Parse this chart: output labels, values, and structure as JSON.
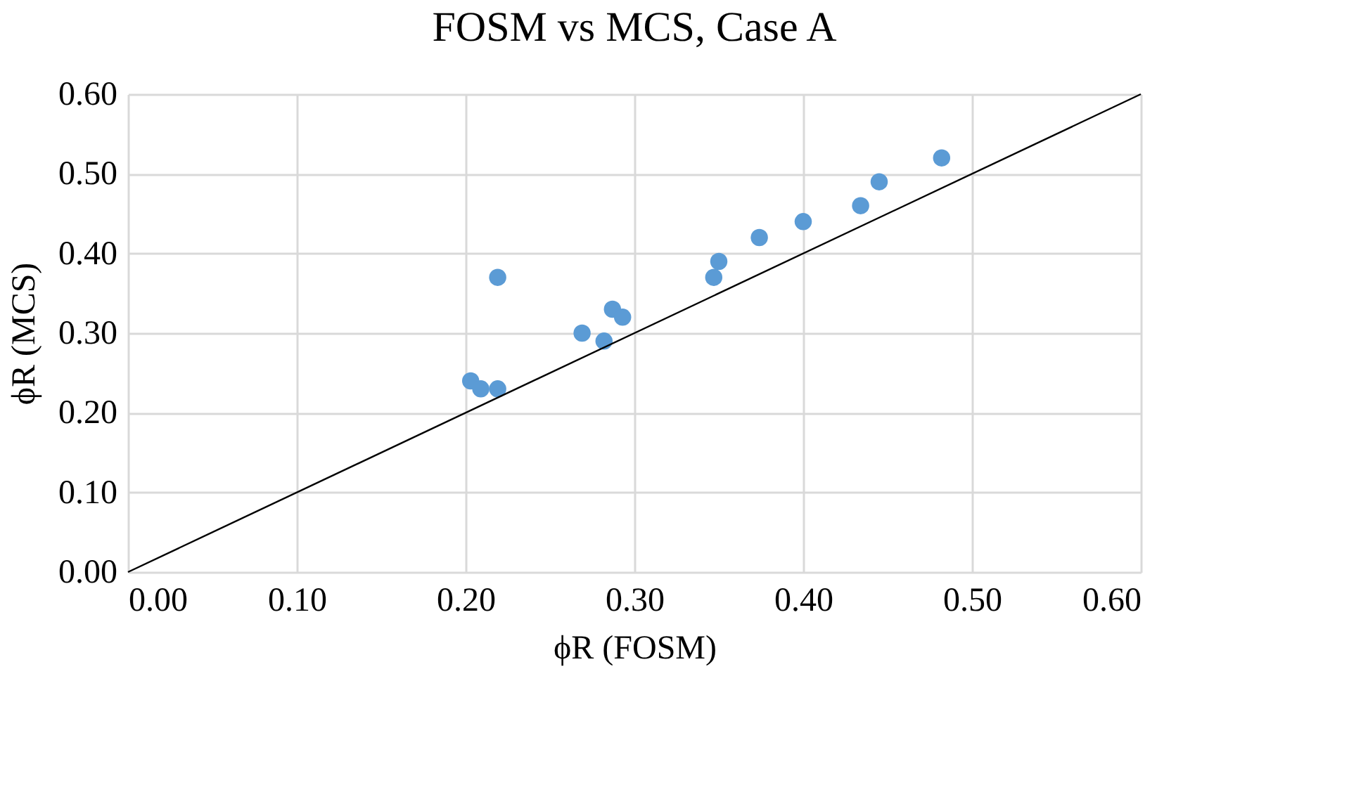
{
  "chart_data": {
    "type": "scatter",
    "title": "FOSM vs MCS, Case A",
    "xlabel": "ϕR (FOSM)",
    "ylabel": "ϕR (MCS)",
    "xlim": [
      0,
      0.6
    ],
    "ylim": [
      0,
      0.6
    ],
    "xticks": [
      {
        "value": 0,
        "label": "0.00"
      },
      {
        "value": 0.1,
        "label": "0.10"
      },
      {
        "value": 0.2,
        "label": "0.20"
      },
      {
        "value": 0.3,
        "label": "0.30"
      },
      {
        "value": 0.4,
        "label": "0.40"
      },
      {
        "value": 0.5,
        "label": "0.50"
      },
      {
        "value": 0.6,
        "label": "0.60"
      }
    ],
    "yticks": [
      {
        "value": 0,
        "label": "0.00"
      },
      {
        "value": 0.1,
        "label": "0.10"
      },
      {
        "value": 0.2,
        "label": "0.20"
      },
      {
        "value": 0.3,
        "label": "0.30"
      },
      {
        "value": 0.4,
        "label": "0.40"
      },
      {
        "value": 0.5,
        "label": "0.50"
      },
      {
        "value": 0.6,
        "label": "0.60"
      }
    ],
    "grid": true,
    "marker": "circle",
    "series": [
      {
        "color": "#5b9bd5",
        "x": [
          0.203,
          0.209,
          0.219,
          0.219,
          0.269,
          0.282,
          0.287,
          0.293,
          0.347,
          0.35,
          0.374,
          0.4,
          0.434,
          0.445,
          0.482
        ],
        "values": [
          0.24,
          0.23,
          0.23,
          0.37,
          0.3,
          0.29,
          0.33,
          0.32,
          0.37,
          0.39,
          0.42,
          0.44,
          0.46,
          0.49,
          0.52
        ]
      },
      {
        "type": "line",
        "color": "#000000",
        "line_style": "solid",
        "marker": "none",
        "x": [
          0,
          0.6
        ],
        "values": [
          0,
          0.6
        ]
      }
    ]
  }
}
